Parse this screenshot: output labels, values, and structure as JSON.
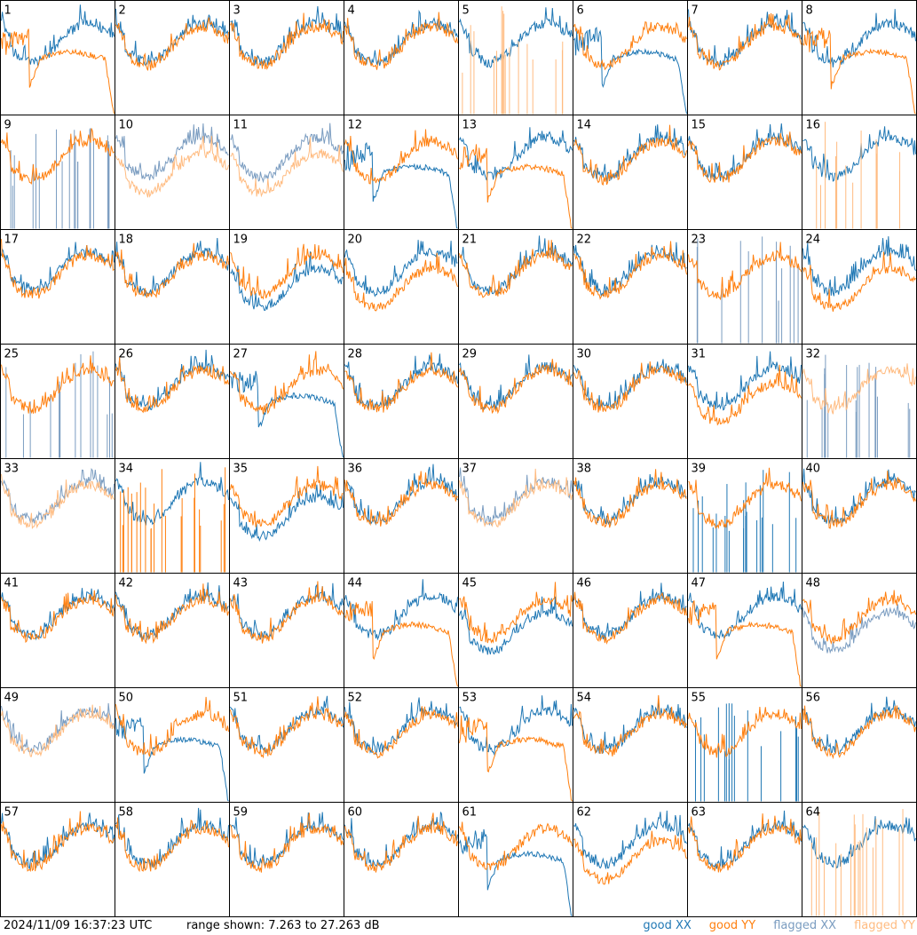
{
  "footer": {
    "timestamp": "2024/11/09 16:37:23 UTC",
    "range": "range shown: 7.263 to 27.263 dB",
    "legend": {
      "good_xx": "good XX",
      "good_yy": "good YY",
      "flagged_xx": "flagged XX",
      "flagged_yy": "flagged YY"
    }
  },
  "colors": {
    "good_xx": "#1f77b4",
    "good_yy": "#ff7f0e",
    "flagged_xx": "#7a9cc0",
    "flagged_yy": "#ffbb80"
  },
  "chart_data": {
    "type": "line",
    "layout": "8x8 grid of small multiples",
    "ylim": [
      7.263,
      27.263
    ],
    "y_unit": "dB",
    "panels": [
      {
        "label": "1",
        "xx": "good",
        "yy": "good",
        "pattern_xx": "normal",
        "pattern_yy": "rolloff"
      },
      {
        "label": "2",
        "xx": "good",
        "yy": "good",
        "pattern_xx": "normal",
        "pattern_yy": "normal"
      },
      {
        "label": "3",
        "xx": "good",
        "yy": "good",
        "pattern_xx": "normal",
        "pattern_yy": "normal"
      },
      {
        "label": "4",
        "xx": "good",
        "yy": "good",
        "pattern_xx": "normal",
        "pattern_yy": "normal"
      },
      {
        "label": "5",
        "xx": "good",
        "yy": "flagged",
        "pattern_xx": "normal",
        "pattern_yy": "spikes"
      },
      {
        "label": "6",
        "xx": "good",
        "yy": "good",
        "pattern_xx": "rolloff",
        "pattern_yy": "normal"
      },
      {
        "label": "7",
        "xx": "good",
        "yy": "good",
        "pattern_xx": "normal",
        "pattern_yy": "normal"
      },
      {
        "label": "8",
        "xx": "good",
        "yy": "good",
        "pattern_xx": "normal",
        "pattern_yy": "rolloff"
      },
      {
        "label": "9",
        "xx": "flagged",
        "yy": "good",
        "pattern_xx": "spikes",
        "pattern_yy": "normal"
      },
      {
        "label": "10",
        "xx": "flagged",
        "yy": "flagged",
        "pattern_xx": "normal",
        "pattern_yy": "low"
      },
      {
        "label": "11",
        "xx": "flagged",
        "yy": "flagged",
        "pattern_xx": "normal",
        "pattern_yy": "low"
      },
      {
        "label": "12",
        "xx": "good",
        "yy": "good",
        "pattern_xx": "rolloff",
        "pattern_yy": "normal"
      },
      {
        "label": "13",
        "xx": "good",
        "yy": "good",
        "pattern_xx": "normal",
        "pattern_yy": "rolloff"
      },
      {
        "label": "14",
        "xx": "good",
        "yy": "good",
        "pattern_xx": "normal",
        "pattern_yy": "normal"
      },
      {
        "label": "15",
        "xx": "good",
        "yy": "good",
        "pattern_xx": "normal",
        "pattern_yy": "normal"
      },
      {
        "label": "16",
        "xx": "good",
        "yy": "flagged",
        "pattern_xx": "normal",
        "pattern_yy": "spikes"
      },
      {
        "label": "17",
        "xx": "good",
        "yy": "good",
        "pattern_xx": "normal",
        "pattern_yy": "normal"
      },
      {
        "label": "18",
        "xx": "good",
        "yy": "good",
        "pattern_xx": "normal",
        "pattern_yy": "normal"
      },
      {
        "label": "19",
        "xx": "good",
        "yy": "good",
        "pattern_xx": "low",
        "pattern_yy": "normal"
      },
      {
        "label": "20",
        "xx": "good",
        "yy": "good",
        "pattern_xx": "normal",
        "pattern_yy": "low"
      },
      {
        "label": "21",
        "xx": "good",
        "yy": "good",
        "pattern_xx": "normal",
        "pattern_yy": "normal"
      },
      {
        "label": "22",
        "xx": "good",
        "yy": "good",
        "pattern_xx": "normal",
        "pattern_yy": "normal"
      },
      {
        "label": "23",
        "xx": "flagged",
        "yy": "good",
        "pattern_xx": "spikes",
        "pattern_yy": "normal"
      },
      {
        "label": "24",
        "xx": "good",
        "yy": "good",
        "pattern_xx": "normal",
        "pattern_yy": "low"
      },
      {
        "label": "25",
        "xx": "flagged",
        "yy": "good",
        "pattern_xx": "spikes",
        "pattern_yy": "normal"
      },
      {
        "label": "26",
        "xx": "good",
        "yy": "good",
        "pattern_xx": "normal",
        "pattern_yy": "normal"
      },
      {
        "label": "27",
        "xx": "good",
        "yy": "good",
        "pattern_xx": "rolloff",
        "pattern_yy": "normal"
      },
      {
        "label": "28",
        "xx": "good",
        "yy": "good",
        "pattern_xx": "normal",
        "pattern_yy": "normal"
      },
      {
        "label": "29",
        "xx": "good",
        "yy": "good",
        "pattern_xx": "normal",
        "pattern_yy": "normal"
      },
      {
        "label": "30",
        "xx": "good",
        "yy": "good",
        "pattern_xx": "normal",
        "pattern_yy": "normal"
      },
      {
        "label": "31",
        "xx": "good",
        "yy": "good",
        "pattern_xx": "normal",
        "pattern_yy": "low"
      },
      {
        "label": "32",
        "xx": "flagged",
        "yy": "flagged",
        "pattern_xx": "spikes",
        "pattern_yy": "normal"
      },
      {
        "label": "33",
        "xx": "flagged",
        "yy": "flagged",
        "pattern_xx": "normal",
        "pattern_yy": "normal"
      },
      {
        "label": "34",
        "xx": "good",
        "yy": "good",
        "pattern_xx": "normal",
        "pattern_yy": "spikes"
      },
      {
        "label": "35",
        "xx": "good",
        "yy": "good",
        "pattern_xx": "low",
        "pattern_yy": "normal"
      },
      {
        "label": "36",
        "xx": "good",
        "yy": "good",
        "pattern_xx": "normal",
        "pattern_yy": "normal"
      },
      {
        "label": "37",
        "xx": "flagged",
        "yy": "flagged",
        "pattern_xx": "normal",
        "pattern_yy": "normal"
      },
      {
        "label": "38",
        "xx": "good",
        "yy": "good",
        "pattern_xx": "normal",
        "pattern_yy": "normal"
      },
      {
        "label": "39",
        "xx": "good",
        "yy": "good",
        "pattern_xx": "spikes",
        "pattern_yy": "normal"
      },
      {
        "label": "40",
        "xx": "good",
        "yy": "good",
        "pattern_xx": "normal",
        "pattern_yy": "normal"
      },
      {
        "label": "41",
        "xx": "good",
        "yy": "good",
        "pattern_xx": "normal",
        "pattern_yy": "normal"
      },
      {
        "label": "42",
        "xx": "good",
        "yy": "good",
        "pattern_xx": "normal",
        "pattern_yy": "normal"
      },
      {
        "label": "43",
        "xx": "good",
        "yy": "good",
        "pattern_xx": "normal",
        "pattern_yy": "normal"
      },
      {
        "label": "44",
        "xx": "good",
        "yy": "good",
        "pattern_xx": "normal",
        "pattern_yy": "rolloff"
      },
      {
        "label": "45",
        "xx": "good",
        "yy": "good",
        "pattern_xx": "low",
        "pattern_yy": "normal"
      },
      {
        "label": "46",
        "xx": "good",
        "yy": "good",
        "pattern_xx": "normal",
        "pattern_yy": "normal"
      },
      {
        "label": "47",
        "xx": "good",
        "yy": "good",
        "pattern_xx": "normal",
        "pattern_yy": "rolloff"
      },
      {
        "label": "48",
        "xx": "flagged",
        "yy": "good",
        "pattern_xx": "low",
        "pattern_yy": "normal"
      },
      {
        "label": "49",
        "xx": "flagged",
        "yy": "flagged",
        "pattern_xx": "normal",
        "pattern_yy": "normal"
      },
      {
        "label": "50",
        "xx": "good",
        "yy": "good",
        "pattern_xx": "rolloff",
        "pattern_yy": "normal"
      },
      {
        "label": "51",
        "xx": "good",
        "yy": "good",
        "pattern_xx": "normal",
        "pattern_yy": "normal"
      },
      {
        "label": "52",
        "xx": "good",
        "yy": "good",
        "pattern_xx": "normal",
        "pattern_yy": "normal"
      },
      {
        "label": "53",
        "xx": "good",
        "yy": "good",
        "pattern_xx": "normal",
        "pattern_yy": "rolloff"
      },
      {
        "label": "54",
        "xx": "good",
        "yy": "good",
        "pattern_xx": "normal",
        "pattern_yy": "normal"
      },
      {
        "label": "55",
        "xx": "good",
        "yy": "good",
        "pattern_xx": "spikes",
        "pattern_yy": "normal"
      },
      {
        "label": "56",
        "xx": "good",
        "yy": "good",
        "pattern_xx": "normal",
        "pattern_yy": "normal"
      },
      {
        "label": "57",
        "xx": "good",
        "yy": "good",
        "pattern_xx": "normal",
        "pattern_yy": "normal"
      },
      {
        "label": "58",
        "xx": "good",
        "yy": "good",
        "pattern_xx": "normal",
        "pattern_yy": "normal"
      },
      {
        "label": "59",
        "xx": "good",
        "yy": "good",
        "pattern_xx": "normal",
        "pattern_yy": "normal"
      },
      {
        "label": "60",
        "xx": "good",
        "yy": "good",
        "pattern_xx": "normal",
        "pattern_yy": "normal"
      },
      {
        "label": "61",
        "xx": "good",
        "yy": "good",
        "pattern_xx": "rolloff",
        "pattern_yy": "normal"
      },
      {
        "label": "62",
        "xx": "good",
        "yy": "good",
        "pattern_xx": "normal",
        "pattern_yy": "low"
      },
      {
        "label": "63",
        "xx": "good",
        "yy": "good",
        "pattern_xx": "normal",
        "pattern_yy": "normal"
      },
      {
        "label": "64",
        "xx": "good",
        "yy": "flagged",
        "pattern_xx": "normal",
        "pattern_yy": "spikes"
      }
    ]
  }
}
